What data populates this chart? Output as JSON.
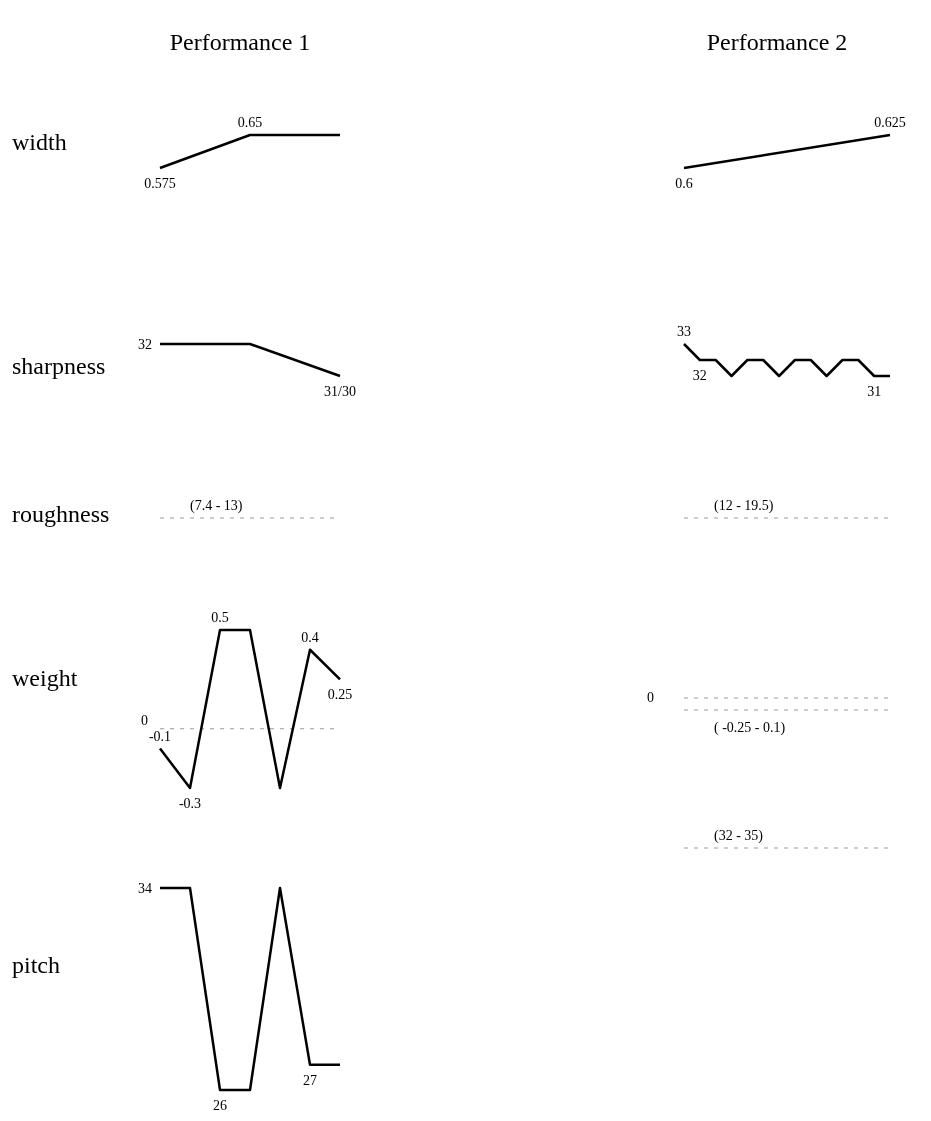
{
  "chart_data": [
    {
      "type": "line",
      "title": "Performance 1",
      "ylabel": "width",
      "categories": [
        null,
        null,
        null
      ],
      "values": [
        0.575,
        0.65,
        0.65
      ],
      "value_labels": [
        "0.575",
        "0.65",
        null
      ],
      "color": "#000000"
    },
    {
      "type": "line",
      "title": "Performance 2",
      "categories": [
        null,
        null
      ],
      "values": [
        0.6,
        0.625
      ],
      "value_labels": [
        "0.6",
        "0.625"
      ],
      "color": "#000000"
    },
    {
      "type": "line",
      "ylabel": "sharpness",
      "categories": [
        null,
        null,
        null
      ],
      "values": [
        32,
        32,
        31
      ],
      "value_labels": [
        "32",
        null,
        "31/30"
      ],
      "color": "#000000"
    },
    {
      "type": "line",
      "categories": [
        null,
        null,
        null,
        null,
        null,
        null,
        null,
        null,
        null,
        null,
        null,
        null,
        null,
        null
      ],
      "values": [
        33,
        32,
        32,
        31,
        32,
        32,
        31,
        32,
        32,
        31,
        32,
        32,
        31,
        31
      ],
      "value_labels": [
        "33",
        "32",
        null,
        null,
        null,
        null,
        null,
        null,
        null,
        null,
        null,
        null,
        "31",
        null
      ],
      "color": "#000000"
    },
    {
      "type": "other",
      "ylabel": "roughness",
      "annotations": [
        "(7.4 - 13)"
      ]
    },
    {
      "type": "other",
      "annotations": [
        "(12 - 19.5)"
      ]
    },
    {
      "type": "line",
      "ylabel": "weight",
      "categories": [
        null,
        null,
        null,
        null,
        null,
        null,
        null
      ],
      "values": [
        -0.1,
        -0.3,
        0.5,
        0.5,
        -0.3,
        0.4,
        0.25
      ],
      "value_labels": [
        "-0.1",
        "-0.3",
        "0.5",
        null,
        null,
        "0.4",
        "0.25"
      ],
      "color": "#000000",
      "ref_lines": [
        {
          "axis": "y",
          "value": 0,
          "label": "0",
          "line_style": "dashed",
          "color": "#999999"
        }
      ]
    },
    {
      "type": "other",
      "annotations": [
        "0",
        "( -0.25 - 0.1)"
      ]
    },
    {
      "type": "line",
      "ylabel": "pitch",
      "categories": [
        null,
        null,
        null,
        null,
        null,
        null,
        null
      ],
      "values": [
        34,
        34,
        26,
        26,
        34,
        27,
        27
      ],
      "value_labels": [
        "34",
        null,
        "26",
        null,
        null,
        "27",
        null
      ],
      "color": "#000000"
    },
    {
      "type": "other",
      "annotations": [
        "(32 - 35)"
      ]
    }
  ]
}
